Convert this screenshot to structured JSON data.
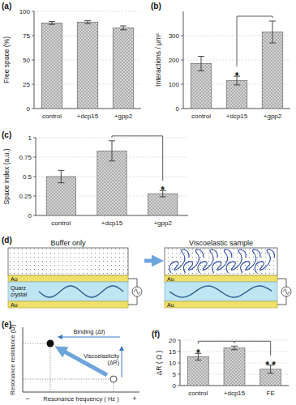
{
  "chart_data": [
    {
      "type": "bar",
      "title": "(a)",
      "y_label": "Free space (%)",
      "categories": [
        "control",
        "+dcp15",
        "+gpp2"
      ],
      "values": [
        88,
        89,
        83
      ],
      "errors": [
        1.5,
        1.5,
        2
      ],
      "color": "#d4d4d4",
      "ylim": [
        0,
        100
      ],
      "yticks": [
        0,
        25,
        50,
        75,
        100
      ],
      "grid": true
    },
    {
      "type": "bar",
      "title": "(b)",
      "y_label": "Interactions / μm²",
      "categories": [
        "control",
        "+dcp15",
        "+gpp2"
      ],
      "values": [
        185,
        115,
        315
      ],
      "errors": [
        30,
        18,
        45
      ],
      "color": "#d4d4d4",
      "ylim": [
        0,
        400
      ],
      "yticks": [
        0,
        100,
        200,
        300
      ],
      "grid": true,
      "annotations": [
        {
          "text": "*",
          "category": 1,
          "bracket_to": 2
        }
      ]
    },
    {
      "type": "bar",
      "title": "(c)",
      "y_label": "Space index (a.u.)",
      "categories": [
        "control",
        "+dcp15",
        "+gpp2"
      ],
      "values": [
        0.5,
        0.83,
        0.28
      ],
      "errors": [
        0.08,
        0.13,
        0.04
      ],
      "color": "#d4d4d4",
      "ylim": [
        0,
        1
      ],
      "yticks": [
        0,
        0.25,
        0.5,
        0.75,
        1
      ],
      "grid": true,
      "annotations": [
        {
          "text": "*",
          "category": 2,
          "bracket_to": 1
        }
      ]
    },
    {
      "type": "bar",
      "title": "(f)",
      "y_label": "ΔR ( Ω )",
      "categories": [
        "control",
        "+dcp15",
        "FE"
      ],
      "values": [
        12.7,
        16.6,
        7.2
      ],
      "errors": [
        1.5,
        0.8,
        1.8
      ],
      "color": "#d4d4d4",
      "ylim": [
        0,
        20
      ],
      "yticks": [
        0,
        5,
        10,
        15,
        20
      ],
      "grid": true,
      "annotations": [
        {
          "text": "*",
          "category": 0,
          "bracket_to": 1
        },
        {
          "text": "* *",
          "category": 2,
          "bracket_to": 1
        }
      ]
    }
  ],
  "diagrams": {
    "d": {
      "title": "(d)",
      "left_label": "Buffer only",
      "right_label": "Viscoelastic sample",
      "electrode": "Au",
      "crystal": "Quarz crystal"
    },
    "e": {
      "title": "(e)",
      "y_label": "Resonance resistance (Ω)",
      "x_label": "Resonance frequency ( Hz )",
      "x_minus": "−",
      "x_plus": "+",
      "binding": "Binding (Δf)",
      "viscoelasticity": "Viscoelasticity (ΔR)"
    }
  }
}
